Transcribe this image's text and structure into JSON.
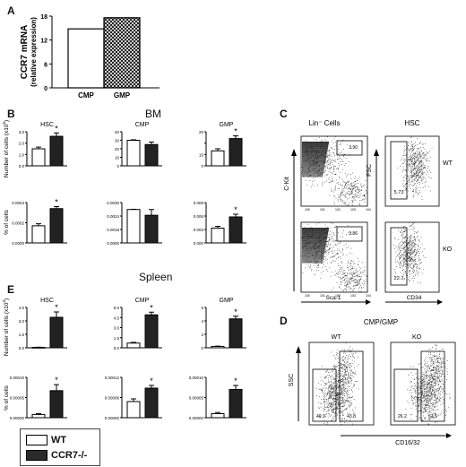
{
  "panels": {
    "A": {
      "letter": "A",
      "ylabel": "CCR7 mRNA",
      "ylabel2": "(relative expression)",
      "yticks": [
        "0",
        "6",
        "12",
        "18"
      ],
      "chart_data": {
        "type": "bar",
        "categories": [
          "CMP",
          "GMP"
        ],
        "values": [
          14.8,
          17.6
        ],
        "ylim": [
          0,
          18
        ],
        "colors": [
          "#ffffff",
          "crosshatch"
        ]
      }
    },
    "B": {
      "letter": "B",
      "title": "BM",
      "ylabel_top": "Number of cells (x10",
      "ylabel_top_sup": "5",
      "ylabel_top_close": ")",
      "ylabel_bottom": "% of cells"
    },
    "C": {
      "letter": "C",
      "title_left": "Lin⁻ Cells",
      "title_right": "HSC",
      "ckit": "C-Kit",
      "fsc": "FSC",
      "sca1": "Sca-1",
      "cd34": "CD34",
      "wt": "WT",
      "ko": "KO",
      "gate_wt_lsk": "3.90",
      "gate_ko_lsk": "3.86",
      "gate_wt_hsc": "5.73",
      "gate_ko_hsc": "22.7"
    },
    "D": {
      "letter": "D",
      "title": "CMP/GMP",
      "ssc": "SSC",
      "cd16": "CD16/32",
      "wt": "WT",
      "ko": "KO",
      "wt_left": "49.9",
      "wt_right": "43.8",
      "ko_left": "26.2",
      "ko_right": "63.5"
    },
    "E": {
      "letter": "E",
      "title": "Spleen",
      "ylabel_top": "Number of cells (x10",
      "ylabel_top_sup": "3",
      "ylabel_top_close": ")",
      "ylabel_bottom": "% of cells"
    }
  },
  "legend": {
    "wt": "WT",
    "ko": "CCR7-/-"
  },
  "star": "*",
  "chart_data": [
    {
      "id": "B-HSC-num",
      "type": "bar",
      "title": "HSC",
      "categories": [
        "WT",
        "CCR7-/-"
      ],
      "values": [
        1.5,
        2.6
      ],
      "errors": [
        0.15,
        0.3
      ],
      "ylim": [
        0,
        3.0
      ],
      "yticks": [
        "0.0",
        "1.0",
        "2.0",
        "3.0"
      ],
      "star": true
    },
    {
      "id": "B-CMP-num",
      "type": "bar",
      "title": "CMP",
      "categories": [
        "WT",
        "CCR7-/-"
      ],
      "values": [
        30,
        25
      ],
      "errors": [
        0.6,
        3.0
      ],
      "ylim": [
        0,
        40
      ],
      "yticks": [
        "0",
        "10",
        "20",
        "30",
        "40"
      ],
      "star": false
    },
    {
      "id": "B-GMP-num",
      "type": "bar",
      "title": "GMP",
      "categories": [
        "WT",
        "CCR7-/-"
      ],
      "values": [
        11,
        20
      ],
      "errors": [
        1.5,
        2.0
      ],
      "ylim": [
        0,
        25
      ],
      "yticks": [
        "0",
        "5",
        "10",
        "15",
        "20",
        "25"
      ],
      "star": true
    },
    {
      "id": "B-HSC-pct",
      "type": "bar",
      "categories": [
        "WT",
        "CCR7-/-"
      ],
      "values": [
        0.00017,
        0.00034
      ],
      "errors": [
        2e-05,
        2e-05
      ],
      "ylim": [
        0,
        0.0004
      ],
      "yticks": [
        "0.0000",
        "0.0002",
        "0.0004"
      ],
      "star": true
    },
    {
      "id": "B-CMP-pct",
      "type": "bar",
      "categories": [
        "WT",
        "CCR7-/-"
      ],
      "values": [
        0.0029,
        0.0024
      ],
      "errors": [
        2e-05,
        0.0005
      ],
      "ylim": [
        0,
        0.0035
      ],
      "yticks": [
        "0.0000",
        "0.0014",
        "0.0016",
        "0.0018",
        "0.0020",
        "0.0022",
        "0.0024",
        "0.0026",
        "0.0028",
        "0.0030",
        "0.0035"
      ],
      "star": false
    },
    {
      "id": "B-GMP-pct",
      "type": "bar",
      "categories": [
        "WT",
        "CCR7-/-"
      ],
      "values": [
        0.0033,
        0.0058
      ],
      "errors": [
        0.0004,
        0.0006
      ],
      "ylim": [
        0,
        0.009
      ],
      "yticks": [
        "0.000",
        "0.003",
        "0.006",
        "0.009"
      ],
      "star": true
    },
    {
      "id": "E-HSC-num",
      "type": "bar",
      "title": "HSC",
      "categories": [
        "WT",
        "CCR7-/-"
      ],
      "values": [
        0.05,
        3.4
      ],
      "errors": [
        0.02,
        0.6
      ],
      "ylim": [
        0,
        4.5
      ],
      "yticks": [
        "0.0",
        "1.5",
        "3.0",
        "4.5"
      ],
      "star": true
    },
    {
      "id": "E-CMP-num",
      "type": "bar",
      "title": "CMP",
      "categories": [
        "WT",
        "CCR7-/-"
      ],
      "values": [
        0.7,
        4.9
      ],
      "errors": [
        0.1,
        0.4
      ],
      "ylim": [
        0,
        6.0
      ],
      "yticks": [
        "0.0",
        "1.5",
        "3.0",
        "4.5",
        "6.0"
      ],
      "star": true
    },
    {
      "id": "E-GMP-num",
      "type": "bar",
      "title": "GMP",
      "categories": [
        "WT",
        "CCR7-/-"
      ],
      "values": [
        0.2,
        4.3
      ],
      "errors": [
        0.05,
        0.4
      ],
      "ylim": [
        0,
        6
      ],
      "yticks": [
        "0",
        "2",
        "4",
        "6"
      ],
      "star": true
    },
    {
      "id": "E-HSC-pct",
      "type": "bar",
      "categories": [
        "WT",
        "CCR7-/-"
      ],
      "values": [
        8e-07,
        6.7e-06
      ],
      "errors": [
        2e-07,
        1.5e-06
      ],
      "ylim": [
        0,
        1e-05
      ],
      "yticks": [
        "0.00000",
        "0.00005",
        "0.00010"
      ],
      "star": true
    },
    {
      "id": "E-CMP-pct",
      "type": "bar",
      "categories": [
        "WT",
        "CCR7-/-"
      ],
      "values": [
        6e-05,
        0.00011
      ],
      "errors": [
        1e-05,
        1e-05
      ],
      "ylim": [
        0,
        0.00015
      ],
      "yticks": [
        "0.00000",
        "0.00006",
        "0.00012"
      ],
      "star": true
    },
    {
      "id": "E-GMP-pct",
      "type": "bar",
      "categories": [
        "WT",
        "CCR7-/-"
      ],
      "values": [
        1e-05,
        7e-05
      ],
      "errors": [
        3e-06,
        1e-05
      ],
      "ylim": [
        0,
        0.0001
      ],
      "yticks": [
        "0.00000",
        "0.00005",
        "0.00010"
      ],
      "star": true
    }
  ]
}
